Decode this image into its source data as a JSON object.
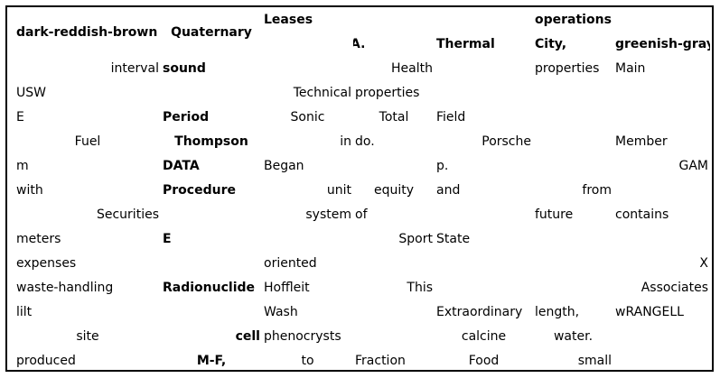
{
  "table": {
    "columns": [
      {
        "header": "dark-reddish-brown",
        "header_align": "l",
        "header_valign": "mid",
        "align": [
          "r",
          "l",
          "l",
          "c",
          "l",
          "l",
          "r",
          "l",
          "c",
          "l",
          "l",
          "l",
          "c",
          "l"
        ],
        "cells": [
          "interval",
          "USW",
          "E",
          "Fuel",
          "m",
          "with",
          "Securities",
          "meters",
          "expenses",
          "waste-handling",
          "lilt",
          "site",
          "produced"
        ]
      },
      {
        "header": "Quaternary",
        "header_align": "c",
        "header_valign": "mid",
        "cells": [
          "sound",
          "",
          "Period",
          "Thompson",
          "DATA",
          "Procedure",
          "",
          "E",
          "",
          "Radionuclide",
          "",
          "cell",
          "M-F,"
        ]
      },
      {
        "header": "Leases",
        "header_align": "l",
        "header_valign": "top",
        "cells": [
          "",
          "Technical",
          "Sonic",
          "in",
          "Began",
          "unit",
          "system",
          "",
          "oriented",
          "Hoffleit",
          "Wash",
          "phenocrysts",
          "to"
        ]
      },
      {
        "header": "N.A.",
        "header_align": "l",
        "header_valign": "mid",
        "cells": [
          "Health",
          "properties",
          "Total",
          "do.",
          "",
          "equity",
          "of",
          "Sport",
          "",
          "This",
          "",
          "",
          "Fraction"
        ]
      },
      {
        "header": "Thermal",
        "header_align": "l",
        "header_valign": "mid",
        "cells": [
          "",
          "",
          "Field",
          "Porsche",
          "p.",
          "and",
          "",
          "State",
          "",
          "",
          "Extraordinary",
          "calcine",
          "Food"
        ]
      },
      {
        "header": "operations",
        "header_align": "c",
        "header_valign": "top",
        "second_header": "City,",
        "cells": [
          "properties",
          "",
          "",
          "",
          "",
          "from",
          "future",
          "",
          "",
          "",
          "length,",
          "water.",
          "small"
        ]
      },
      {
        "header": "greenish-gray,",
        "header_align": "l",
        "header_valign": "mid",
        "cells": [
          "Main",
          "",
          "",
          "Member",
          "GAM",
          "",
          "contains",
          "",
          "X",
          "Associates",
          "wRANGELL",
          "",
          ""
        ]
      }
    ]
  },
  "rows": [
    [
      "interval",
      "sound",
      "",
      "Health",
      "",
      "properties",
      "Main"
    ],
    [
      "USW",
      "",
      "Technical",
      "properties",
      "",
      "",
      ""
    ],
    [
      "E",
      "Period",
      "Sonic",
      "Total",
      "Field",
      "",
      ""
    ],
    [
      "Fuel",
      "Thompson",
      "in",
      "do.",
      "Porsche",
      "",
      "Member"
    ],
    [
      "m",
      "DATA",
      "Began",
      "",
      "p.",
      "",
      "GAM"
    ],
    [
      "with",
      "Procedure",
      "unit",
      "equity",
      "and",
      "from",
      ""
    ],
    [
      "Securities",
      "",
      "system",
      "of",
      "",
      "future",
      "contains"
    ],
    [
      "meters",
      "E",
      "",
      "Sport",
      "State",
      "",
      ""
    ],
    [
      "expenses",
      "",
      "oriented",
      "",
      "",
      "",
      "X"
    ],
    [
      "waste-handling",
      "Radionuclide",
      "Hoffleit",
      "This",
      "",
      "",
      "Associates"
    ],
    [
      "lilt",
      "",
      "Wash",
      "",
      "Extraordinary",
      "length,",
      "wRANGELL"
    ],
    [
      "site",
      "cell",
      "phenocrysts",
      "",
      "calcine",
      "water.",
      ""
    ],
    [
      "produced",
      "M-F,",
      "to",
      "Fraction",
      "Food",
      "small",
      ""
    ]
  ],
  "headers": {
    "c0": "dark-reddish-brown",
    "c1": "Quaternary",
    "c2a": "Leases",
    "c3": "N.A.",
    "c4": "Thermal",
    "c5a": "operations",
    "c5b": "City,",
    "c6": "greenish-gray,"
  }
}
